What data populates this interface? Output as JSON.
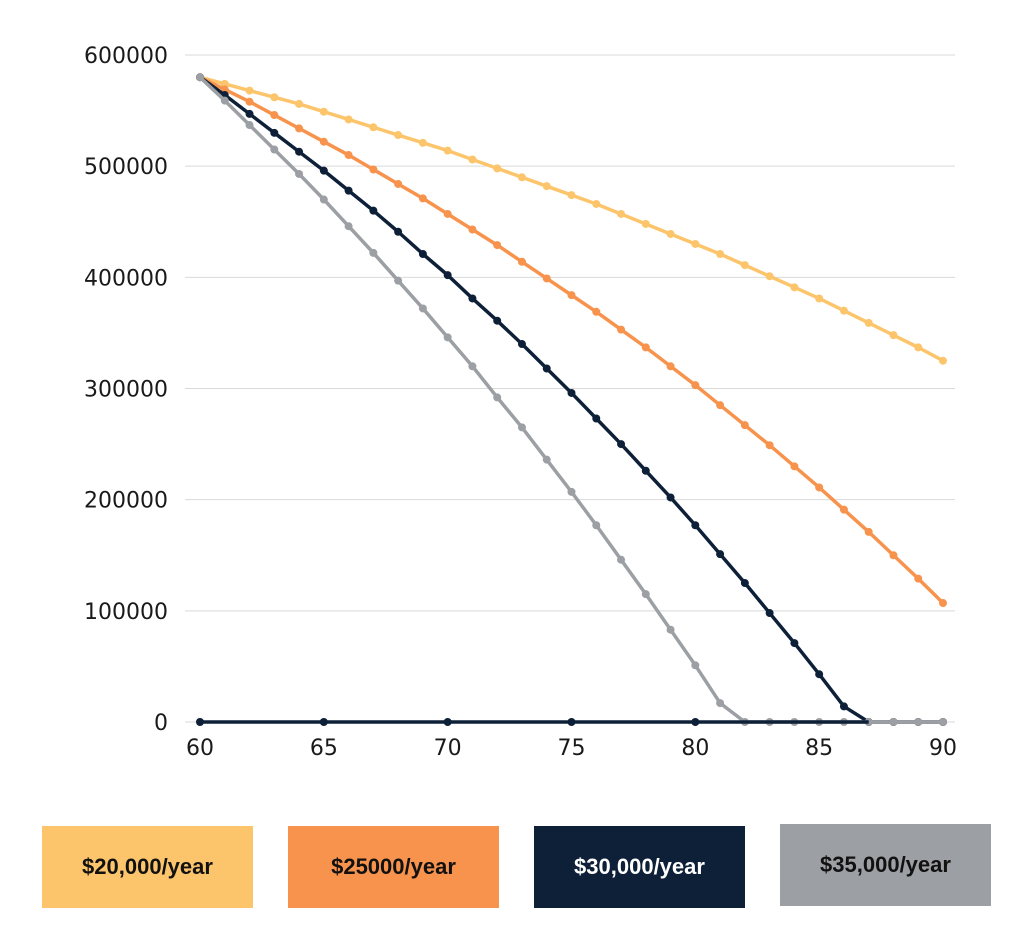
{
  "chart_data": {
    "type": "line",
    "x": [
      60,
      61,
      62,
      63,
      64,
      65,
      66,
      67,
      68,
      69,
      70,
      71,
      72,
      73,
      74,
      75,
      76,
      77,
      78,
      79,
      80,
      81,
      82,
      83,
      84,
      85,
      86,
      87,
      88,
      89,
      90
    ],
    "xlim": [
      60,
      90
    ],
    "ylim": [
      0,
      600000
    ],
    "xticks": [
      "60",
      "65",
      "70",
      "75",
      "80",
      "85",
      "90"
    ],
    "yticks": [
      "0",
      "100000",
      "200000",
      "300000",
      "400000",
      "500000",
      "600000"
    ],
    "grid": "horizontal",
    "legend": "bottom",
    "series": [
      {
        "name": "$20,000/year",
        "color": "#FDC56B",
        "values": [
          580000,
          574000,
          568000,
          562000,
          556000,
          549000,
          542000,
          535000,
          528000,
          521000,
          514000,
          506000,
          498000,
          490000,
          482000,
          474000,
          466000,
          457000,
          448000,
          439000,
          430000,
          421000,
          411000,
          401000,
          391000,
          381000,
          370000,
          359000,
          348000,
          337000,
          325000
        ]
      },
      {
        "name": "$25000/year",
        "color": "#F7934C",
        "values": [
          580000,
          569000,
          558000,
          546000,
          534000,
          522000,
          510000,
          497000,
          484000,
          471000,
          457000,
          443000,
          429000,
          414000,
          399000,
          384000,
          369000,
          353000,
          337000,
          320000,
          303000,
          285000,
          267000,
          249000,
          230000,
          211000,
          191000,
          171000,
          150000,
          129000,
          107000
        ]
      },
      {
        "name": "$30,000/year",
        "color": "#0D2038",
        "values": [
          580000,
          564000,
          547000,
          530000,
          513000,
          496000,
          478000,
          460000,
          441000,
          421000,
          402000,
          381000,
          361000,
          340000,
          318000,
          296000,
          273000,
          250000,
          226000,
          202000,
          177000,
          151000,
          125000,
          98000,
          71000,
          43000,
          14000,
          0,
          0,
          0,
          0
        ]
      },
      {
        "name": "$35,000/year",
        "color": "#9C9FA3",
        "values": [
          580000,
          559000,
          537000,
          515000,
          493000,
          470000,
          446000,
          422000,
          397000,
          372000,
          346000,
          320000,
          292000,
          265000,
          236000,
          207000,
          177000,
          146000,
          115000,
          83000,
          51000,
          17000,
          0,
          0,
          0,
          0,
          0,
          0,
          0,
          0,
          0
        ]
      },
      {
        "name": "",
        "color": "#0D2038",
        "x": [
          60,
          65,
          70,
          75,
          80
        ],
        "values": [
          0,
          0,
          0,
          0,
          0
        ]
      }
    ]
  },
  "legend": {
    "items": [
      {
        "label": "$20,000/year",
        "bg": "#FDC56B",
        "fg": "#111111"
      },
      {
        "label": "$25000/year",
        "bg": "#F7934C",
        "fg": "#111111"
      },
      {
        "label": "$30,000/year",
        "bg": "#0D2038",
        "fg": "#ffffff"
      },
      {
        "label": "$35,000/year",
        "bg": "#9C9FA3",
        "fg": "#111111"
      }
    ]
  }
}
